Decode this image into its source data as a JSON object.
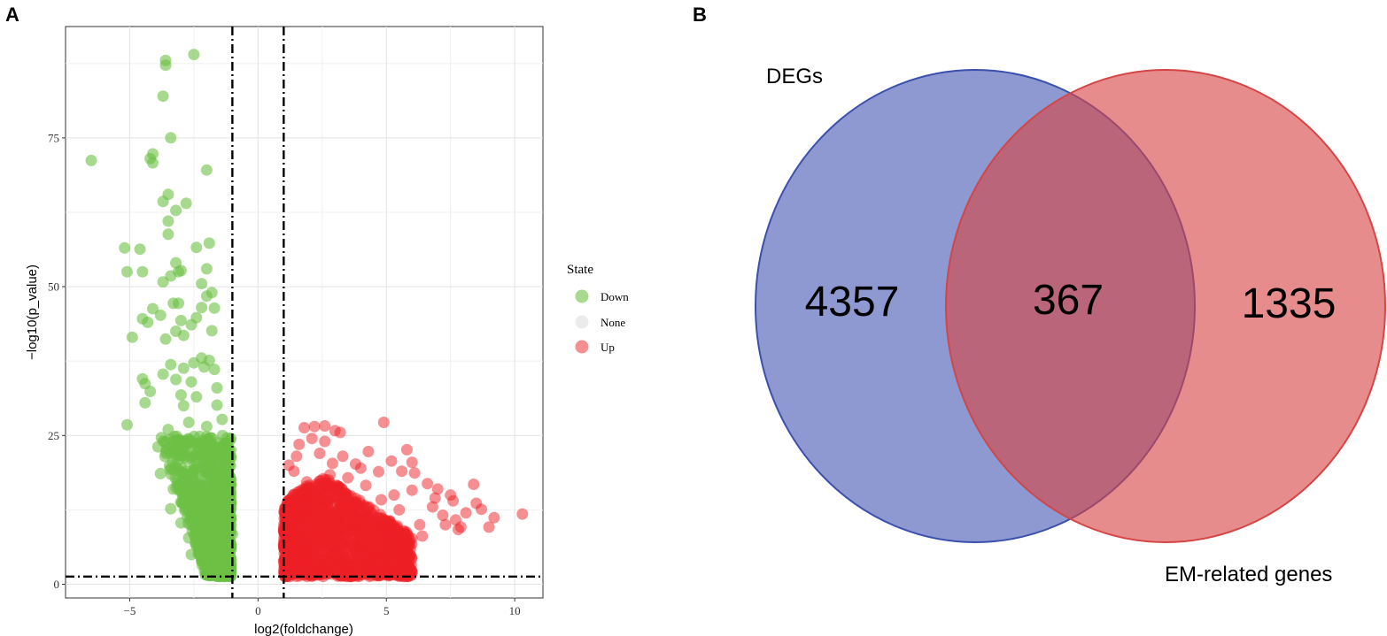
{
  "panel_a": {
    "label": "A"
  },
  "panel_b": {
    "label": "B"
  },
  "chart_data": [
    {
      "type": "scatter",
      "title": "",
      "xlabel": "log2(foldchange)",
      "ylabel": "−log10(p_value)",
      "xlim": [
        -7.5,
        11.1
      ],
      "ylim": [
        -2.3,
        93.7
      ],
      "x_ticks": [
        -5,
        0,
        5,
        10
      ],
      "x_tick_labels": [
        "−5",
        "0",
        "5",
        "10"
      ],
      "y_ticks": [
        0,
        25,
        50,
        75
      ],
      "y_tick_labels": [
        "0",
        "25",
        "50",
        "75"
      ],
      "grid": true,
      "thresholds": {
        "vlines": [
          -1,
          1
        ],
        "hline": 1.3
      },
      "legend": {
        "title": "State",
        "position": "right",
        "entries": [
          {
            "label": "Down",
            "color": "#6dbf44"
          },
          {
            "label": "None",
            "color": "#cccccc"
          },
          {
            "label": "Up",
            "color": "#ee2026"
          }
        ]
      },
      "series": [
        {
          "name": "Down",
          "color": "#6dbf44",
          "points": [
            [
              -2.5,
              89
            ],
            [
              -3.6,
              88
            ],
            [
              -3.6,
              87.2
            ],
            [
              -3.7,
              82
            ],
            [
              -3.4,
              75
            ],
            [
              -6.5,
              71.2
            ],
            [
              -4.1,
              72.3
            ],
            [
              -4.2,
              71.5
            ],
            [
              -4.1,
              70.8
            ],
            [
              -2.0,
              69.6
            ],
            [
              -3.5,
              65.5
            ],
            [
              -3.7,
              64.3
            ],
            [
              -2.8,
              64.0
            ],
            [
              -3.2,
              62.8
            ],
            [
              -3.5,
              61.0
            ],
            [
              -3.5,
              58.8
            ],
            [
              -5.2,
              56.5
            ],
            [
              -4.6,
              56.3
            ],
            [
              -2.4,
              56.6
            ],
            [
              -1.9,
              57.3
            ],
            [
              -3.2,
              54.0
            ],
            [
              -3.1,
              52.5
            ],
            [
              -3.4,
              51.8
            ],
            [
              -3.0,
              52.7
            ],
            [
              -2.0,
              53.0
            ],
            [
              -5.1,
              52.5
            ],
            [
              -4.5,
              52.5
            ],
            [
              -3.7,
              50.8
            ],
            [
              -2.2,
              50.5
            ],
            [
              -1.8,
              49.0
            ],
            [
              -2.0,
              48.4
            ],
            [
              -3.3,
              47.2
            ],
            [
              -3.1,
              47.2
            ],
            [
              -4.1,
              46.3
            ],
            [
              -2.2,
              46.5
            ],
            [
              -1.7,
              46.4
            ],
            [
              -2.4,
              44.8
            ],
            [
              -4.5,
              44.6
            ],
            [
              -3.8,
              45.2
            ],
            [
              -4.3,
              44.0
            ],
            [
              -3.0,
              44.3
            ],
            [
              -2.6,
              43.6
            ],
            [
              -1.8,
              42.6
            ],
            [
              -3.6,
              41.2
            ],
            [
              -4.9,
              41.5
            ],
            [
              -3.2,
              42.5
            ],
            [
              -2.9,
              41.8
            ],
            [
              -2.2,
              38.0
            ],
            [
              -1.9,
              37.6
            ],
            [
              -2.5,
              37.2
            ],
            [
              -3.4,
              36.9
            ],
            [
              -2.1,
              36.5
            ],
            [
              -1.7,
              36.1
            ],
            [
              -2.9,
              36.3
            ],
            [
              -3.7,
              35.3
            ],
            [
              -4.5,
              34.5
            ],
            [
              -4.4,
              33.7
            ],
            [
              -3.2,
              34.4
            ],
            [
              -2.6,
              34.0
            ],
            [
              -4.2,
              32.4
            ],
            [
              -1.6,
              33.0
            ],
            [
              -3.0,
              31.8
            ],
            [
              -2.4,
              31.5
            ],
            [
              -1.6,
              30.1
            ],
            [
              -2.9,
              30.0
            ],
            [
              -4.4,
              30.5
            ],
            [
              -5.1,
              26.8
            ],
            [
              -3.9,
              23.1
            ],
            [
              -3.6,
              22.0
            ],
            [
              -3.8,
              18.6
            ],
            [
              -3.3,
              16.0
            ],
            [
              -3.4,
              12.7
            ],
            [
              -3.0,
              10.3
            ],
            [
              -2.7,
              7.8
            ],
            [
              -2.6,
              5.0
            ],
            [
              -2.1,
              3.1
            ],
            [
              -1.5,
              2.1
            ],
            [
              -1.1,
              1.8
            ],
            [
              -1.3,
              5.5
            ],
            [
              -2.3,
              11.8
            ],
            [
              -2.8,
              14.9
            ],
            [
              -1.9,
              19.4
            ],
            [
              -1.5,
              22.6
            ],
            [
              -1.2,
              24.6
            ],
            [
              -1.1,
              15.3
            ],
            [
              -1.0,
              8.4
            ],
            [
              -2.4,
              20.5
            ],
            [
              -3.1,
              24.2
            ],
            [
              -2.0,
              26.5
            ],
            [
              -1.4,
              27.7
            ],
            [
              -2.7,
              27.2
            ],
            [
              -3.5,
              26.0
            ],
            [
              -1.7,
              9.8
            ],
            [
              -2.9,
              18.0
            ]
          ],
          "dense_region": {
            "x_min": -3.2,
            "x_max": -1.0,
            "y_min": 1.3,
            "y_max": 25,
            "note": "densely overlapping Down points"
          }
        },
        {
          "name": "Up",
          "color": "#ee2026",
          "points": [
            [
              1.2,
              20.0
            ],
            [
              1.4,
              19.0
            ],
            [
              1.6,
              23.5
            ],
            [
              1.8,
              26.3
            ],
            [
              2.2,
              26.5
            ],
            [
              2.6,
              26.6
            ],
            [
              2.6,
              24.0
            ],
            [
              2.1,
              24.5
            ],
            [
              3.0,
              25.8
            ],
            [
              3.2,
              25.5
            ],
            [
              4.9,
              27.2
            ],
            [
              4.3,
              22.3
            ],
            [
              5.8,
              22.6
            ],
            [
              5.2,
              20.7
            ],
            [
              6.0,
              20.5
            ],
            [
              5.6,
              19.0
            ],
            [
              6.1,
              18.7
            ],
            [
              3.8,
              20.2
            ],
            [
              4.7,
              18.9
            ],
            [
              6.6,
              16.9
            ],
            [
              7.0,
              16.0
            ],
            [
              7.5,
              15.0
            ],
            [
              7.6,
              14.0
            ],
            [
              8.4,
              16.8
            ],
            [
              8.5,
              13.6
            ],
            [
              8.7,
              12.6
            ],
            [
              9.2,
              11.2
            ],
            [
              10.3,
              11.8
            ],
            [
              9.0,
              9.6
            ],
            [
              7.7,
              10.8
            ],
            [
              6.8,
              13.0
            ],
            [
              7.2,
              11.6
            ],
            [
              6.3,
              10.0
            ],
            [
              7.9,
              9.6
            ],
            [
              5.5,
              12.5
            ],
            [
              4.8,
              14.2
            ],
            [
              4.2,
              16.6
            ],
            [
              3.5,
              17.9
            ],
            [
              2.8,
              18.4
            ],
            [
              1.9,
              17.2
            ],
            [
              1.4,
              15.1
            ],
            [
              1.1,
              12.3
            ],
            [
              1.2,
              9.0
            ],
            [
              1.0,
              6.5
            ],
            [
              1.1,
              3.8
            ],
            [
              1.3,
              2.0
            ],
            [
              1.8,
              2.6
            ],
            [
              2.5,
              3.1
            ],
            [
              3.4,
              3.8
            ],
            [
              4.2,
              4.6
            ],
            [
              5.0,
              6.2
            ],
            [
              5.7,
              7.5
            ],
            [
              6.4,
              8.1
            ],
            [
              3.9,
              13.0
            ],
            [
              2.3,
              11.3
            ],
            [
              3.1,
              8.6
            ],
            [
              5.1,
              10.5
            ],
            [
              4.4,
              7.4
            ],
            [
              2.0,
              6.0
            ],
            [
              6.9,
              14.5
            ],
            [
              7.3,
              10.0
            ],
            [
              8.1,
              12.0
            ],
            [
              7.8,
              9.2
            ],
            [
              6.0,
              15.8
            ],
            [
              5.3,
              15.0
            ],
            [
              4.0,
              19.5
            ],
            [
              3.3,
              21.5
            ],
            [
              2.4,
              22.0
            ],
            [
              1.5,
              21.5
            ],
            [
              2.9,
              20.3
            ]
          ],
          "dense_region": {
            "x_min": 1.0,
            "x_max": 6.0,
            "y_min": 1.3,
            "y_max": 18,
            "note": "densely overlapping Up points"
          }
        },
        {
          "name": "None",
          "color": "#cccccc",
          "points": []
        }
      ]
    },
    {
      "type": "venn",
      "sets": [
        {
          "name": "DEGs",
          "only_count": 4357,
          "color": "#3b4fae"
        },
        {
          "name": "EM-related genes",
          "only_count": 1335,
          "color": "#d64545"
        }
      ],
      "intersection_count": 367,
      "labels": {
        "left_only": "4357",
        "intersection": "367",
        "right_only": "1335"
      }
    }
  ]
}
